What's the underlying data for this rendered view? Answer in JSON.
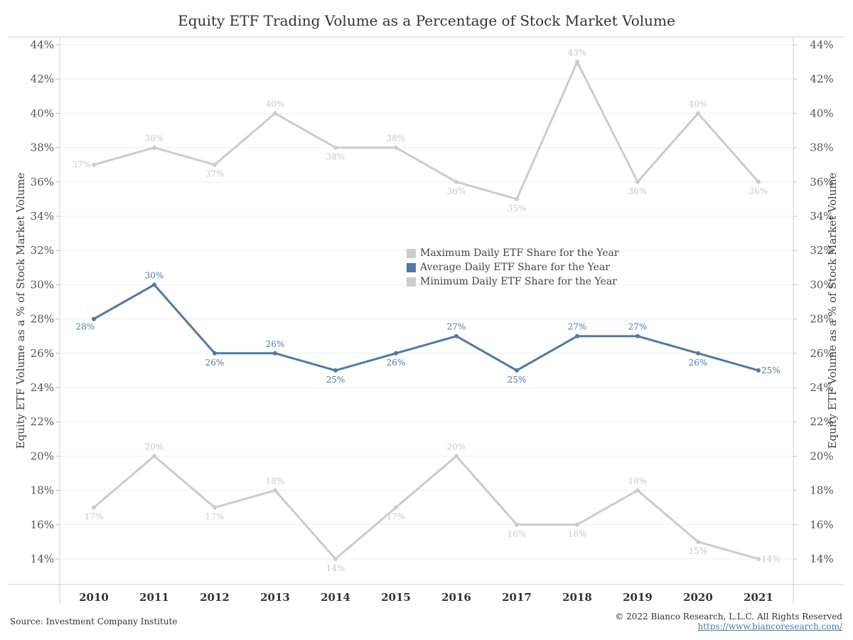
{
  "title": "Equity ETF Trading Volume as a Percentage of Stock Market Volume",
  "footer": {
    "source": "Source: Investment Company Institute",
    "copyright": "© 2022 Bianco Research, L.L.C. All Rights Reserved",
    "url": "https://www.biancoresearch.com/"
  },
  "colors": {
    "max": "#cccccc",
    "avg": "#4e79a7",
    "min": "#cccccc",
    "grid": "#eeeeee",
    "axis": "#999999"
  },
  "chart_data": {
    "type": "line",
    "title": "Equity ETF Trading Volume as a Percentage of Stock Market Volume",
    "ylabel": "Equity ETF Volume as a % of Stock Market Volume",
    "ylabel_right": "Equity ETF Volume as a % of Stock Market Volume",
    "ylim": [
      13,
      44.5
    ],
    "yticks": [
      14,
      16,
      18,
      20,
      22,
      24,
      26,
      28,
      30,
      32,
      34,
      36,
      38,
      40,
      42,
      44
    ],
    "ytick_suffix": "%",
    "x": [
      "2010",
      "2011",
      "2012",
      "2013",
      "2014",
      "2015",
      "2016",
      "2017",
      "2018",
      "2019",
      "2020",
      "2021"
    ],
    "legend_position": "center",
    "grid": true,
    "series": [
      {
        "name": "Maximum Daily ETF Share for the Year",
        "key": "max",
        "values": [
          37,
          38,
          37,
          40,
          38,
          38,
          36,
          35,
          43,
          36,
          40,
          36
        ],
        "label_pos": [
          "left",
          "top",
          "bottom",
          "top",
          "bottom",
          "top",
          "bottom",
          "bottom",
          "top",
          "bottom",
          "top",
          "bottom"
        ]
      },
      {
        "name": "Average Daily ETF Share for the Year",
        "key": "avg",
        "values": [
          28,
          30,
          26,
          26,
          25,
          26,
          27,
          25,
          27,
          27,
          26,
          25
        ],
        "label_pos": [
          "bottom-left",
          "top",
          "bottom",
          "top",
          "bottom",
          "bottom",
          "top",
          "bottom",
          "top",
          "top",
          "bottom",
          "right"
        ]
      },
      {
        "name": "Minimum Daily ETF Share for the Year",
        "key": "min",
        "values": [
          17,
          20,
          17,
          18,
          14,
          17,
          20,
          16,
          16,
          18,
          15,
          14
        ],
        "label_pos": [
          "bottom",
          "top",
          "bottom",
          "top",
          "bottom",
          "bottom",
          "top",
          "bottom",
          "bottom",
          "top",
          "bottom",
          "right"
        ]
      }
    ]
  }
}
